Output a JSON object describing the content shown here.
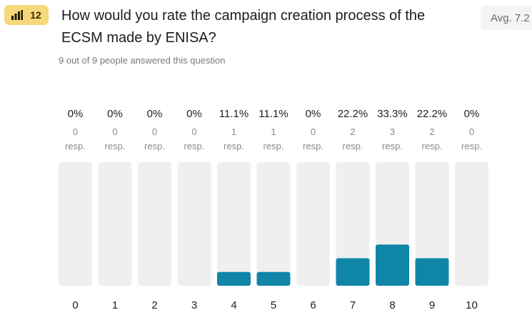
{
  "question": {
    "number": "12",
    "icon": "bar-chart-icon",
    "title": "How would you rate the campaign creation process of the ECSM made by ENISA?",
    "average": "Avg. 7.2",
    "answered": "9 out of 9 people answered this question"
  },
  "colors": {
    "badge": "#f6d77a",
    "bar_fill": "#0f86a8",
    "bar_track": "#efefef"
  },
  "chart_data": {
    "type": "bar",
    "categories": [
      "0",
      "1",
      "2",
      "3",
      "4",
      "5",
      "6",
      "7",
      "8",
      "9",
      "10"
    ],
    "values": [
      0,
      0,
      0,
      0,
      1,
      1,
      0,
      2,
      3,
      2,
      0
    ],
    "percent_labels": [
      "0%",
      "0%",
      "0%",
      "0%",
      "11.1%",
      "11.1%",
      "0%",
      "22.2%",
      "33.3%",
      "22.2%",
      "0%"
    ],
    "count_labels": [
      "0",
      "0",
      "0",
      "0",
      "1",
      "1",
      "0",
      "2",
      "3",
      "2",
      "0"
    ],
    "response_unit": "resp.",
    "ylim": [
      0,
      9
    ],
    "grid": false,
    "legend": "none"
  }
}
